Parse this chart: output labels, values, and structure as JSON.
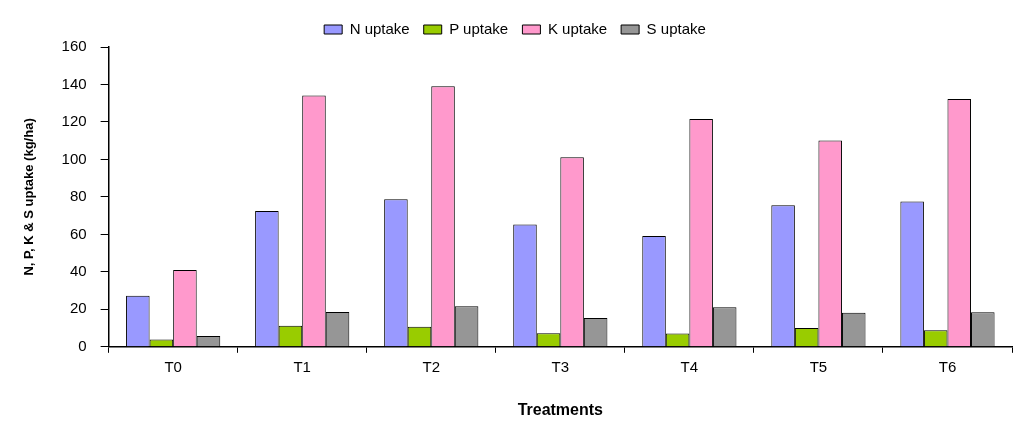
{
  "chart_data": {
    "type": "bar",
    "xlabel": "Treatments",
    "ylabel": "N, P, K & S uptake (kg/ha)",
    "categories": [
      "T0",
      "T1",
      "T2",
      "T3",
      "T4",
      "T5",
      "T6"
    ],
    "series": [
      {
        "name": "N uptake",
        "color": "#9999ff",
        "values": [
          27.3,
          72.5,
          78.7,
          65.3,
          59.1,
          75.6,
          77.5
        ]
      },
      {
        "name": "P uptake",
        "color": "#99cc00",
        "values": [
          3.9,
          11.2,
          10.7,
          7.2,
          7.1,
          10.1,
          8.8
        ]
      },
      {
        "name": "K uptake",
        "color": "#ff99cc",
        "values": [
          41,
          134.1,
          139.1,
          101.1,
          121.6,
          110.1,
          132.2
        ]
      },
      {
        "name": "S uptake",
        "color": "#969696",
        "values": [
          5.7,
          18.6,
          21.6,
          15.4,
          21.1,
          18.2,
          18.4
        ]
      }
    ],
    "ylim": [
      0,
      160
    ],
    "yticks": [
      0,
      20,
      40,
      60,
      80,
      100,
      120,
      140,
      160
    ],
    "grid": false,
    "legend": "top"
  }
}
